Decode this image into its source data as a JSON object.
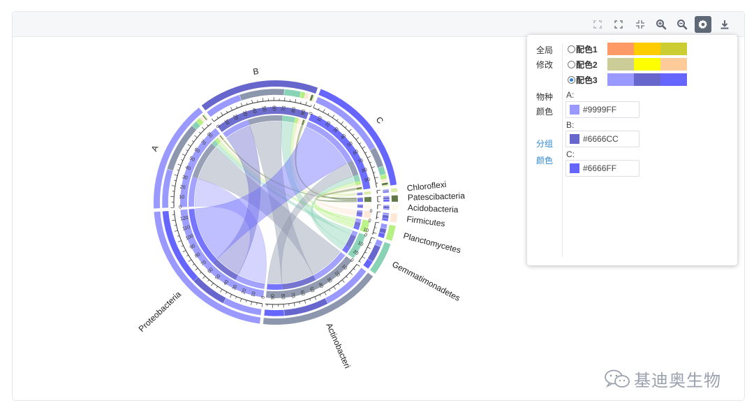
{
  "toolbar": {
    "tools": [
      {
        "name": "fit-to-screen-icon",
        "glyph": "⛶"
      },
      {
        "name": "fullscreen-icon",
        "glyph": "⛶"
      },
      {
        "name": "shrink-icon",
        "glyph": "⊹"
      },
      {
        "name": "zoom-in-icon",
        "glyph": "🔍"
      },
      {
        "name": "zoom-out-icon",
        "glyph": "🔎"
      },
      {
        "name": "settings-icon",
        "glyph": "⚙"
      },
      {
        "name": "download-icon",
        "glyph": "⤓"
      }
    ],
    "active_tool": "settings-icon"
  },
  "settings": {
    "global_label_1": "全局",
    "global_label_2": "修改",
    "species_label_1": "物种",
    "species_label_2": "颜色",
    "group_label_1": "分组",
    "group_label_2": "颜色",
    "schemes": [
      {
        "name": "配色1",
        "selected": false,
        "colors": [
          "#FF9966",
          "#FFCC00",
          "#CCCC33"
        ]
      },
      {
        "name": "配色2",
        "selected": false,
        "colors": [
          "#CCCC99",
          "#FFFF00",
          "#FFCC99"
        ]
      },
      {
        "name": "配色3",
        "selected": true,
        "colors": [
          "#9999FF",
          "#6666CC",
          "#6666FF"
        ]
      }
    ],
    "groups": [
      {
        "key": "A:",
        "color": "#9999FF"
      },
      {
        "key": "B:",
        "color": "#6666CC"
      },
      {
        "key": "C:",
        "color": "#6666FF"
      }
    ]
  },
  "chart_data": {
    "type": "chord",
    "title": "",
    "groups": [
      {
        "name": "A",
        "color": "#9999FF"
      },
      {
        "name": "B",
        "color": "#6666CC"
      },
      {
        "name": "C",
        "color": "#6666FF"
      }
    ],
    "taxa": [
      {
        "name": "Proteobacteria",
        "color": "#9999FF"
      },
      {
        "name": "Actinobacteria",
        "color": "#8C96AC"
      },
      {
        "name": "Gemmatimonadetes",
        "color": "#88D2B6"
      },
      {
        "name": "Planctomycetes",
        "color": "#B6F082"
      },
      {
        "name": "Firmicutes",
        "color": "#FFE7D6"
      },
      {
        "name": "Acidobacteria",
        "color": "#FFF9EC"
      },
      {
        "name": "Patescibacteria",
        "color": "#5F7744"
      },
      {
        "name": "Chloroflexi",
        "color": "#D9EBA4"
      }
    ],
    "taxa_display_labels": [
      "Proteobacteria",
      "Actinobacteri",
      "Gemmatimonadetes",
      "Planctomycetes",
      "Firmicutes",
      "Acidobacteria",
      "Patescibacteria",
      "Chloroflexi"
    ],
    "values": {
      "A": {
        "Proteobacteria": 33,
        "Actinobacteria": 42,
        "Gemmatimonadetes": 5,
        "Planctomycetes": 4,
        "Firmicutes": 2,
        "Acidobacteria": 1,
        "Patescibacteria": 1,
        "Chloroflexi": 1
      },
      "B": {
        "Proteobacteria": 31,
        "Actinobacteria": 38,
        "Gemmatimonadetes": 14,
        "Planctomycetes": 4,
        "Firmicutes": 3,
        "Acidobacteria": 2,
        "Patescibacteria": 2,
        "Chloroflexi": 1
      },
      "C": {
        "Proteobacteria": 65,
        "Actinobacteria": 17,
        "Gemmatimonadetes": 7,
        "Planctomycetes": 4,
        "Firmicutes": 2,
        "Acidobacteria": 1,
        "Patescibacteria": 2,
        "Chloroflexi": 1
      }
    },
    "tick_step": 10
  },
  "watermark": {
    "text": "基迪奥生物"
  }
}
